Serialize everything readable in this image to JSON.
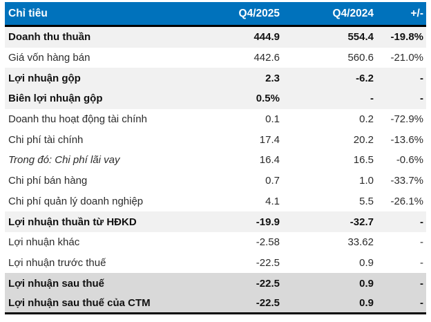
{
  "chart_data": {
    "type": "table",
    "title": "",
    "columns": [
      "Chỉ tiêu",
      "Q4/2025",
      "Q4/2024",
      "+/-"
    ],
    "rows": [
      {
        "label": "Doanh thu thuần",
        "q4_2025": "444.9",
        "q4_2024": "554.4",
        "change": "-19.8%"
      },
      {
        "label": "Giá vốn hàng bán",
        "q4_2025": "442.6",
        "q4_2024": "560.6",
        "change": "-21.0%"
      },
      {
        "label": "Lợi nhuận gộp",
        "q4_2025": "2.3",
        "q4_2024": "-6.2",
        "change": "-"
      },
      {
        "label": "Biên lợi nhuận gộp",
        "q4_2025": "0.5%",
        "q4_2024": "-",
        "change": "-"
      },
      {
        "label": "Doanh thu hoạt động tài chính",
        "q4_2025": "0.1",
        "q4_2024": "0.2",
        "change": "-72.9%"
      },
      {
        "label": "Chi phí tài chính",
        "q4_2025": "17.4",
        "q4_2024": "20.2",
        "change": "-13.6%"
      },
      {
        "label": "Trong đó: Chi phí lãi vay",
        "q4_2025": "16.4",
        "q4_2024": "16.5",
        "change": "-0.6%"
      },
      {
        "label": "Chi phí bán hàng",
        "q4_2025": "0.7",
        "q4_2024": "1.0",
        "change": "-33.7%"
      },
      {
        "label": "Chi phí quản lý doanh nghiệp",
        "q4_2025": "4.1",
        "q4_2024": "5.5",
        "change": "-26.1%"
      },
      {
        "label": "Lợi nhuận thuần từ HĐKD",
        "q4_2025": "-19.9",
        "q4_2024": "-32.7",
        "change": "-"
      },
      {
        "label": "Lợi nhuận khác",
        "q4_2025": "-2.58",
        "q4_2024": "33.62",
        "change": "-"
      },
      {
        "label": "Lợi nhuận trước thuế",
        "q4_2025": "-22.5",
        "q4_2024": "0.9",
        "change": "-"
      },
      {
        "label": "Lợi nhuận sau thuế",
        "q4_2025": "-22.5",
        "q4_2024": "0.9",
        "change": "-"
      },
      {
        "label": "Lợi nhuận sau thuế của CTM",
        "q4_2025": "-22.5",
        "q4_2024": "0.9",
        "change": "-"
      }
    ],
    "layout_hints": {
      "highlight_rows_light_gray": [
        0,
        2,
        3,
        9
      ],
      "highlight_rows_dark_gray": [
        12,
        13
      ],
      "bold_rows": [
        0,
        2,
        3,
        9,
        12,
        13
      ],
      "italic_rows": [
        6
      ]
    }
  },
  "colors": {
    "header_bg": "#0072BC",
    "header_text": "#FFFFFF",
    "row_highlight": "#F1F1F1",
    "row_total": "#D9D9D9",
    "border": "#000000"
  }
}
